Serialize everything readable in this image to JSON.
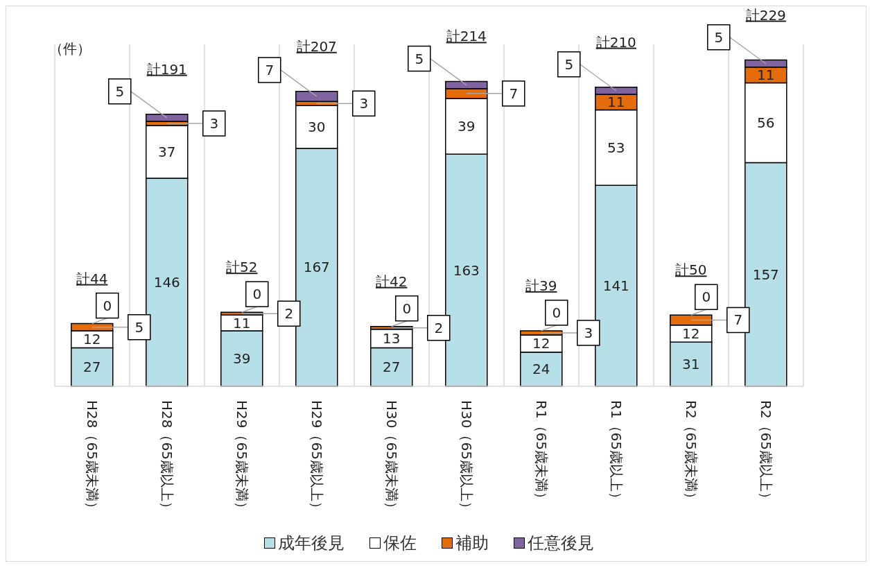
{
  "chart_data": {
    "type": "bar",
    "stacked": true,
    "ylabel": "（件）",
    "grid": "x",
    "legend": "bottom",
    "data_labels": true,
    "categories": [
      "H28（65歳未満）",
      "H28（65歳以上）",
      "H29（65歳未満）",
      "H29（65歳以上）",
      "H30（65歳未満）",
      "H30（65歳以上）",
      "R1（65歳未満）",
      "R1（65歳以上）",
      "R2（65歳未満）",
      "R2（65歳以上）"
    ],
    "series": [
      {
        "name": "成年後見",
        "color": "#b7dfe8",
        "values": [
          27,
          146,
          39,
          167,
          27,
          163,
          24,
          141,
          31,
          157
        ]
      },
      {
        "name": "保佐",
        "color": "#ffffff",
        "values": [
          12,
          37,
          11,
          30,
          13,
          39,
          12,
          53,
          12,
          56
        ]
      },
      {
        "name": "補助",
        "color": "#e46c0a",
        "values": [
          5,
          3,
          2,
          3,
          2,
          7,
          3,
          11,
          7,
          11
        ]
      },
      {
        "name": "任意後見",
        "color": "#8064a2",
        "values": [
          0,
          5,
          0,
          7,
          0,
          5,
          0,
          5,
          0,
          5
        ]
      }
    ],
    "totals": [
      "計44",
      "計191",
      "計52",
      "計207",
      "計42",
      "計214",
      "計39",
      "計210",
      "計50",
      "計229"
    ]
  }
}
